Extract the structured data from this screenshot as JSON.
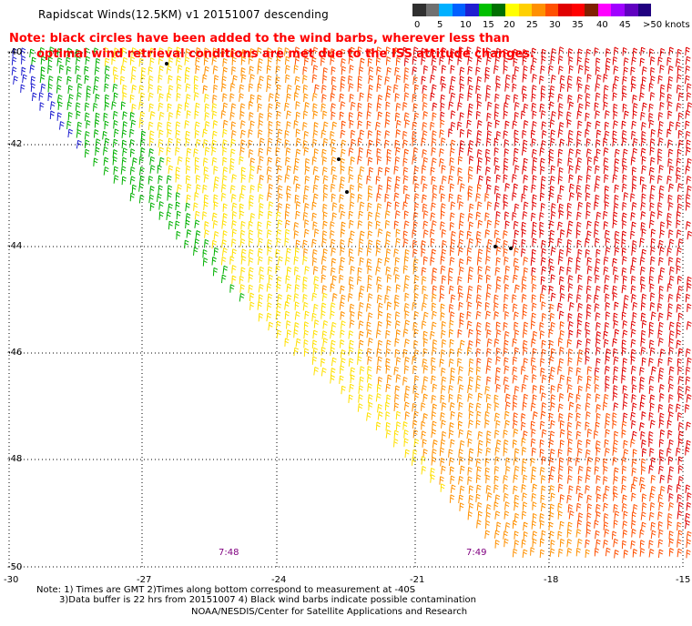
{
  "title": "Rapidscat Winds(12.5KM) v1 20151007 descending",
  "note": {
    "line1": "Note: black circles have been added to the wind barbs, wherever less than",
    "line2": "optimal wind retrieval conditions are met due to the ISS attitude changes."
  },
  "colorbar": {
    "unit": "knots",
    "labels": [
      "0",
      "5",
      "10",
      "15",
      "20",
      "25",
      "30",
      "35",
      "40",
      "45",
      ">50 knots"
    ],
    "colors": [
      "#303030",
      "#707070",
      "#00b0ff",
      "#0060ff",
      "#2020d0",
      "#00c000",
      "#007000",
      "#ffff00",
      "#ffd000",
      "#ff9000",
      "#ff5000",
      "#e00000",
      "#ff0000",
      "#802000",
      "#ff00ff",
      "#a000ff",
      "#6000c0",
      "#200080"
    ]
  },
  "axes": {
    "lat_labels": [
      "-40",
      "-42",
      "-44",
      "-46",
      "-48",
      "-50"
    ],
    "lon_labels": [
      "-30",
      "-27",
      "-24",
      "-21",
      "-18",
      "-15"
    ]
  },
  "times": [
    "7:48",
    "7:49"
  ],
  "footnotes": {
    "line1": "Note: 1) Times are GMT 2)Times along bottom correspond to measurement at -40S",
    "line2": "3)Data buffer is 22 hrs from 20151007 4) Black wind barbs indicate possible contamination",
    "line3": "NOAA/NESDIS/Center for Satellite Applications and Research"
  }
}
